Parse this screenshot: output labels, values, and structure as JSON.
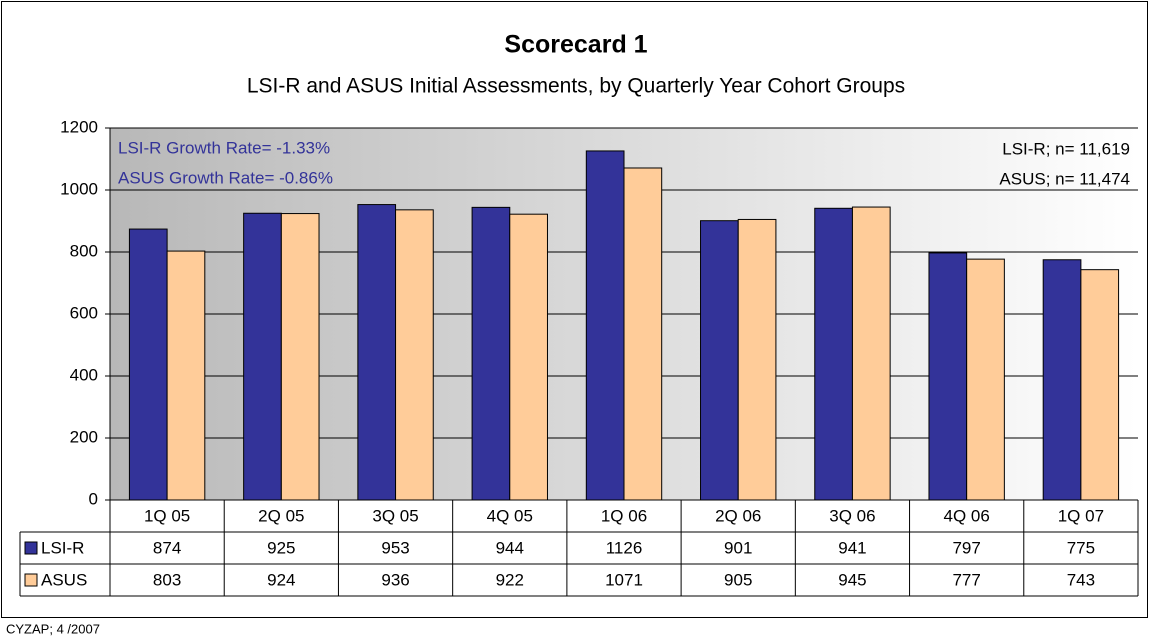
{
  "chart_data": {
    "type": "bar",
    "title": "Scorecard 1",
    "subtitle": "LSI-R and ASUS Initial Assessments, by Quarterly Year Cohort Groups",
    "categories": [
      "1Q 05",
      "2Q 05",
      "3Q 05",
      "4Q 05",
      "1Q 06",
      "2Q 06",
      "3Q 06",
      "4Q 06",
      "1Q 07"
    ],
    "series": [
      {
        "name": "LSI-R",
        "color": "#333399",
        "values": [
          874,
          925,
          953,
          944,
          1126,
          901,
          941,
          797,
          775
        ]
      },
      {
        "name": "ASUS",
        "color": "#ffcc99",
        "values": [
          803,
          924,
          936,
          922,
          1071,
          905,
          945,
          777,
          743
        ]
      }
    ],
    "ylim": [
      0,
      1200
    ],
    "yticks": [
      0,
      200,
      400,
      600,
      800,
      1000,
      1200
    ],
    "grid": true,
    "annotations_left": [
      "LSI-R Growth Rate= -1.33%",
      "ASUS Growth Rate= -0.86%"
    ],
    "annotations_right": [
      "LSI-R; n= 11,619",
      "ASUS; n= 11,474"
    ],
    "footer": "CYZAP; 4 /2007"
  }
}
